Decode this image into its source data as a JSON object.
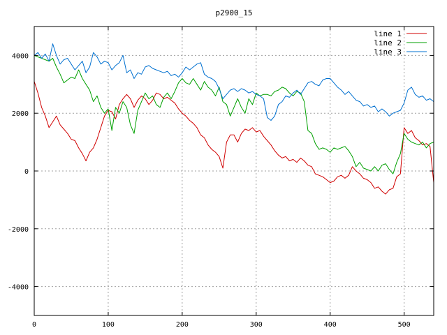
{
  "chart_data": {
    "type": "line",
    "title": "p2900_15",
    "xlabel": "",
    "ylabel": "",
    "xlim": [
      0,
      540
    ],
    "ylim": [
      -5000,
      5000
    ],
    "x_ticks": [
      0,
      100,
      200,
      300,
      400,
      500
    ],
    "y_ticks": [
      -4000,
      -2000,
      0,
      2000,
      4000
    ],
    "grid": true,
    "legend_position": "top-right",
    "series": [
      {
        "name": "line 1",
        "color": "#d00000",
        "x": [
          0,
          5,
          10,
          15,
          20,
          25,
          30,
          35,
          40,
          45,
          50,
          55,
          60,
          65,
          70,
          75,
          80,
          85,
          90,
          95,
          100,
          105,
          110,
          115,
          120,
          125,
          130,
          135,
          140,
          145,
          150,
          155,
          160,
          165,
          170,
          175,
          180,
          185,
          190,
          195,
          200,
          205,
          210,
          215,
          220,
          225,
          230,
          235,
          240,
          245,
          250,
          255,
          260,
          265,
          270,
          275,
          280,
          285,
          290,
          295,
          300,
          305,
          310,
          315,
          320,
          325,
          330,
          335,
          340,
          345,
          350,
          355,
          360,
          365,
          370,
          375,
          380,
          385,
          390,
          395,
          400,
          405,
          410,
          415,
          420,
          425,
          430,
          435,
          440,
          445,
          450,
          455,
          460,
          465,
          470,
          475,
          480,
          485,
          490,
          495,
          500,
          505,
          510,
          515,
          520,
          525,
          530,
          535,
          540
        ],
        "y": [
          3100,
          2700,
          2200,
          1900,
          1500,
          1700,
          1900,
          1600,
          1450,
          1300,
          1100,
          1050,
          800,
          600,
          350,
          650,
          800,
          1100,
          1500,
          1900,
          2100,
          2050,
          1800,
          2300,
          2500,
          2650,
          2500,
          2200,
          2450,
          2600,
          2500,
          2300,
          2450,
          2700,
          2650,
          2500,
          2550,
          2450,
          2350,
          2150,
          2000,
          1900,
          1750,
          1650,
          1500,
          1250,
          1150,
          900,
          750,
          650,
          500,
          100,
          1000,
          1250,
          1250,
          1000,
          1300,
          1450,
          1400,
          1500,
          1350,
          1400,
          1200,
          1050,
          900,
          700,
          550,
          450,
          500,
          350,
          400,
          300,
          450,
          350,
          200,
          150,
          -100,
          -150,
          -200,
          -300,
          -400,
          -350,
          -200,
          -150,
          -250,
          -150,
          150,
          0,
          -100,
          -250,
          -300,
          -400,
          -600,
          -550,
          -700,
          -800,
          -650,
          -600,
          -200,
          -100,
          1500,
          1300,
          1400,
          1150,
          1050,
          900,
          950,
          850,
          -400
        ]
      },
      {
        "name": "line 2",
        "color": "#00a000",
        "x": [
          0,
          5,
          10,
          15,
          20,
          25,
          30,
          35,
          40,
          45,
          50,
          55,
          60,
          65,
          70,
          75,
          80,
          85,
          90,
          95,
          100,
          105,
          110,
          115,
          120,
          125,
          130,
          135,
          140,
          145,
          150,
          155,
          160,
          165,
          170,
          175,
          180,
          185,
          190,
          195,
          200,
          205,
          210,
          215,
          220,
          225,
          230,
          235,
          240,
          245,
          250,
          255,
          260,
          265,
          270,
          275,
          280,
          285,
          290,
          295,
          300,
          305,
          310,
          315,
          320,
          325,
          330,
          335,
          340,
          345,
          350,
          355,
          360,
          365,
          370,
          375,
          380,
          385,
          390,
          395,
          400,
          405,
          410,
          415,
          420,
          425,
          430,
          435,
          440,
          445,
          450,
          455,
          460,
          465,
          470,
          475,
          480,
          485,
          490,
          495,
          500,
          505,
          510,
          515,
          520,
          525,
          530,
          535,
          540
        ],
        "y": [
          4000,
          3950,
          3900,
          3850,
          3800,
          3900,
          3600,
          3350,
          3050,
          3150,
          3250,
          3200,
          3500,
          3200,
          3000,
          2800,
          2400,
          2600,
          2200,
          2000,
          2150,
          1400,
          2200,
          2000,
          2400,
          2200,
          1600,
          1300,
          2100,
          2400,
          2700,
          2500,
          2600,
          2300,
          2200,
          2550,
          2700,
          2500,
          2750,
          3050,
          3200,
          3050,
          3000,
          3200,
          3000,
          2800,
          3100,
          2900,
          2800,
          2600,
          2900,
          2400,
          2300,
          1900,
          2200,
          2500,
          2200,
          2000,
          2500,
          2300,
          2700,
          2600,
          2650,
          2650,
          2600,
          2750,
          2800,
          2900,
          2850,
          2700,
          2600,
          2750,
          2700,
          2400,
          1400,
          1300,
          950,
          750,
          800,
          750,
          650,
          800,
          750,
          800,
          850,
          700,
          500,
          150,
          300,
          100,
          50,
          0,
          150,
          0,
          200,
          250,
          50,
          -100,
          300,
          600,
          1300,
          1100,
          1000,
          950,
          900,
          1000,
          800,
          950,
          1000
        ]
      },
      {
        "name": "line 3",
        "color": "#0070d0",
        "x": [
          0,
          5,
          10,
          15,
          20,
          25,
          30,
          35,
          40,
          45,
          50,
          55,
          60,
          65,
          70,
          75,
          80,
          85,
          90,
          95,
          100,
          105,
          110,
          115,
          120,
          125,
          130,
          135,
          140,
          145,
          150,
          155,
          160,
          165,
          170,
          175,
          180,
          185,
          190,
          195,
          200,
          205,
          210,
          215,
          220,
          225,
          230,
          235,
          240,
          245,
          250,
          255,
          260,
          265,
          270,
          275,
          280,
          285,
          290,
          295,
          300,
          305,
          310,
          315,
          320,
          325,
          330,
          335,
          340,
          345,
          350,
          355,
          360,
          365,
          370,
          375,
          380,
          385,
          390,
          395,
          400,
          405,
          410,
          415,
          420,
          425,
          430,
          435,
          440,
          445,
          450,
          455,
          460,
          465,
          470,
          475,
          480,
          485,
          490,
          495,
          500,
          505,
          510,
          515,
          520,
          525,
          530,
          535,
          540
        ],
        "y": [
          4000,
          4100,
          3900,
          4050,
          3800,
          4400,
          4000,
          3700,
          3850,
          3900,
          3700,
          3500,
          3650,
          3800,
          3400,
          3600,
          4100,
          3950,
          3700,
          3800,
          3750,
          3500,
          3650,
          3750,
          4000,
          3400,
          3500,
          3200,
          3400,
          3350,
          3600,
          3650,
          3550,
          3500,
          3450,
          3400,
          3450,
          3300,
          3350,
          3250,
          3400,
          3600,
          3500,
          3600,
          3700,
          3750,
          3350,
          3250,
          3200,
          3100,
          2850,
          2500,
          2650,
          2800,
          2850,
          2750,
          2850,
          2800,
          2700,
          2750,
          2650,
          2600,
          2500,
          1850,
          1750,
          1900,
          2300,
          2400,
          2600,
          2550,
          2700,
          2800,
          2650,
          2850,
          3050,
          3100,
          3000,
          2950,
          3150,
          3200,
          3200,
          3050,
          2900,
          2800,
          2650,
          2750,
          2600,
          2450,
          2400,
          2250,
          2300,
          2200,
          2250,
          2050,
          2150,
          2050,
          1900,
          2000,
          2050,
          2100,
          2350,
          2800,
          2900,
          2650,
          2550,
          2600,
          2450,
          2500,
          2400
        ]
      }
    ]
  }
}
